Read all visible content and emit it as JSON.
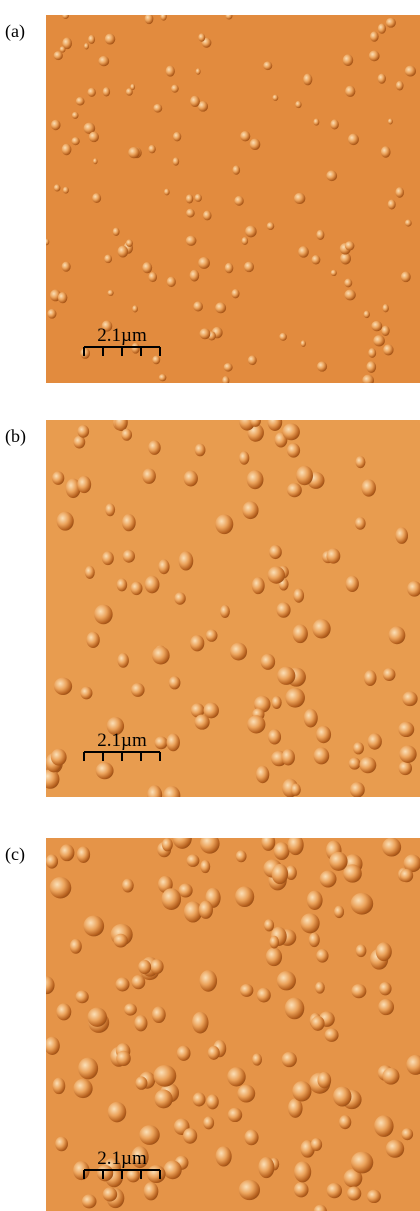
{
  "panels": [
    {
      "label": "(a)",
      "scale_bar": "2.1µm"
    },
    {
      "label": "(b)",
      "scale_bar": "2.1µm"
    },
    {
      "label": "(c)",
      "scale_bar": "2.1µm"
    }
  ]
}
